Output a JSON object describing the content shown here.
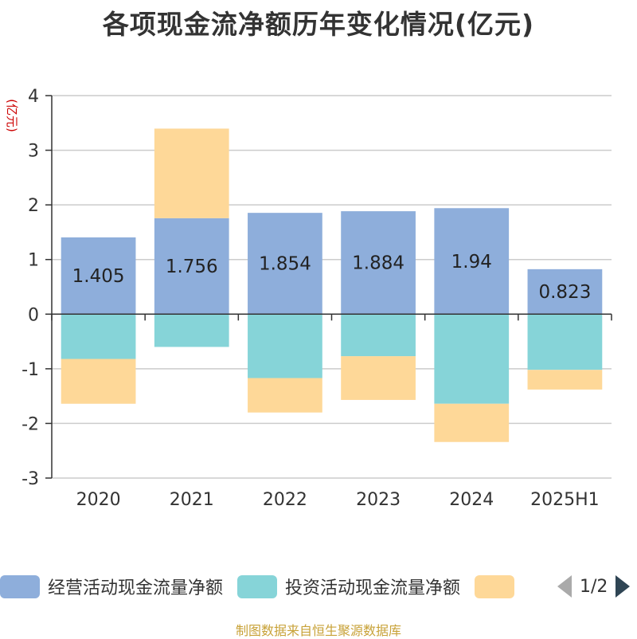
{
  "chart_data": {
    "type": "bar",
    "stacked": true,
    "title": "各项现金流净额历年变化情况(亿元)",
    "ylabel": "(亿元)",
    "ylim": [
      -3,
      4
    ],
    "yticks": [
      4,
      3,
      2,
      1,
      0,
      -1,
      -2,
      -3
    ],
    "grid": true,
    "categories": [
      "2020",
      "2021",
      "2022",
      "2023",
      "2024",
      "2025H1"
    ],
    "series": [
      {
        "name": "经营活动现金流量净额",
        "color": "#8eaedb",
        "values": [
          1.405,
          1.756,
          1.854,
          1.884,
          1.94,
          0.823
        ],
        "labels": [
          "1.405",
          "1.756",
          "1.854",
          "1.884",
          "1.94",
          "0.823"
        ]
      },
      {
        "name": "投资活动现金流量净额",
        "color": "#86d4d8",
        "values": [
          -0.82,
          -0.6,
          -1.17,
          -0.77,
          -1.64,
          -1.02
        ]
      },
      {
        "name": "",
        "color": "#fed898",
        "values": [
          -0.82,
          1.64,
          -0.63,
          -0.8,
          -0.7,
          -0.36
        ]
      }
    ],
    "legend_position": "bottom"
  },
  "legend": {
    "items": [
      {
        "label": "经营活动现金流量净额",
        "color": "#8eaedb"
      },
      {
        "label": "投资活动现金流量净额",
        "color": "#86d4d8"
      },
      {
        "label": "",
        "color": "#fed898"
      }
    ],
    "page_indicator": "1/2"
  },
  "source": "制图数据来自恒生聚源数据库"
}
